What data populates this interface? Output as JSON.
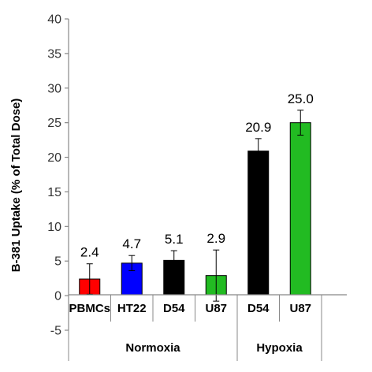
{
  "chart_data": {
    "type": "bar",
    "title": "",
    "ylabel": "B-381 Uptake (% of Total Dose)",
    "ylim": [
      -5,
      40
    ],
    "yticks": [
      -5,
      0,
      5,
      10,
      15,
      20,
      25,
      30,
      35,
      40
    ],
    "grid": false,
    "legend": "none",
    "categories": [
      "PBMCs",
      "HT22",
      "D54",
      "U87",
      "D54",
      "U87"
    ],
    "groups": [
      {
        "label": "Normoxia",
        "categories": [
          0,
          1,
          2,
          3
        ]
      },
      {
        "label": "Hypoxia",
        "categories": [
          4,
          5
        ]
      }
    ],
    "values": [
      2.4,
      4.7,
      5.1,
      2.9,
      20.9,
      25.0
    ],
    "data_labels": [
      "2.4",
      "4.7",
      "5.1",
      "2.9",
      "20.9",
      "25.0"
    ],
    "errors": [
      2.2,
      1.1,
      1.4,
      3.7,
      1.8,
      1.8
    ],
    "colors": [
      "#ff0000",
      "#0000ff",
      "#000000",
      "#22bb22",
      "#000000",
      "#22bb22"
    ]
  }
}
